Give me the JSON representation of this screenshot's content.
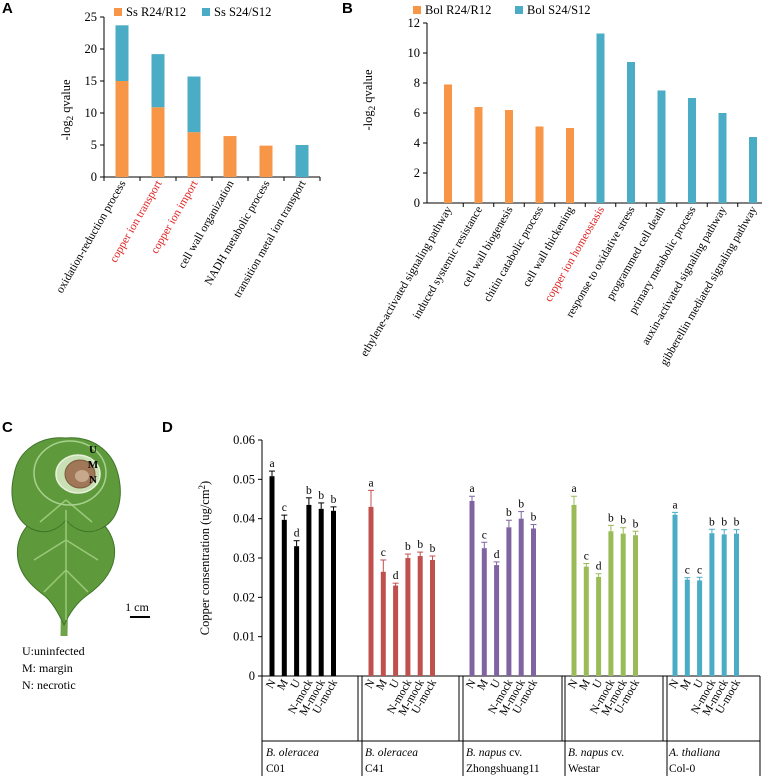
{
  "colors": {
    "orange": "#F79646",
    "teal": "#4BACC6",
    "red_label": "#E02020",
    "leaf": "#5E9A3C",
    "leaf_dark": "#3F7426",
    "necrotic": "#A07858"
  },
  "panel_letters": [
    "A",
    "B",
    "C",
    "D"
  ],
  "chart_data": [
    {
      "id": "A",
      "type": "bar",
      "stacked": true,
      "ylabel": "-log2 qvalue",
      "ylabel_main": "-log",
      "ylabel_sub": "2",
      "ylabel_end": " qvalue",
      "ylim": [
        0,
        25
      ],
      "yticks": [
        0,
        5,
        10,
        15,
        20,
        25
      ],
      "legend_labels": [
        "Ss R24/R12",
        "Ss S24/S12"
      ],
      "categories": [
        "oxidation-reduction process",
        "copper ion transport",
        "copper ion import",
        "cell wall organization",
        "NADH metabolic process",
        "transition metal ion transport"
      ],
      "red_categories": [
        1,
        2
      ],
      "series": [
        {
          "name": "Ss R24/R12",
          "color": "#F79646",
          "values": [
            15,
            10.9,
            7,
            6.4,
            4.9,
            0
          ]
        },
        {
          "name": "Ss S24/S12",
          "color": "#4BACC6",
          "values": [
            8.7,
            8.3,
            8.7,
            0,
            0,
            5
          ]
        }
      ]
    },
    {
      "id": "B",
      "type": "bar",
      "ylabel": "-log2 qvalue",
      "ylabel_main": "-log",
      "ylabel_sub": "2",
      "ylabel_end": " qvalue",
      "ylim": [
        0,
        12
      ],
      "yticks": [
        0,
        2,
        4,
        6,
        8,
        10,
        12
      ],
      "legend_labels": [
        "Bol R24/R12",
        "Bol S24/S12"
      ],
      "categories": [
        "ethylene-activated signaling pathway",
        "induced systemic resistance",
        "cell wall biogenesis",
        "chitin catabolic process",
        "cell wall thickening",
        "copper ion homeostasis",
        "response to oxidative stress",
        "programmed cell death",
        "primary metabolic process",
        "auxin-activated signaling pathway",
        "gibberellin mediated signaling pathway"
      ],
      "red_categories": [
        5
      ],
      "values": [
        7.9,
        6.4,
        6.2,
        5.1,
        5.0,
        11.3,
        9.4,
        7.5,
        7.0,
        6.0,
        4.4
      ],
      "colors_by_bar": [
        "#F79646",
        "#F79646",
        "#F79646",
        "#F79646",
        "#F79646",
        "#4BACC6",
        "#4BACC6",
        "#4BACC6",
        "#4BACC6",
        "#4BACC6",
        "#4BACC6"
      ]
    },
    {
      "id": "D",
      "type": "bar",
      "ylabel": "Copper consentration (ug/cm2)",
      "ylabel_main": "Copper consentration (ug/cm",
      "ylabel_sup": "2",
      "ylabel_end": ")",
      "ylim": [
        0,
        0.06
      ],
      "yticks": [
        "0",
        "0.01",
        "0.02",
        "0.03",
        "0.04",
        "0.05",
        "0.06"
      ],
      "categories": [
        "N",
        "M",
        "U",
        "N-mock",
        "M-mock",
        "U-mock"
      ],
      "groups": [
        {
          "species": "B. oleracea",
          "suffix": "",
          "cultivar": "C01",
          "color": "#000000",
          "values": [
            0.0508,
            0.0397,
            0.033,
            0.0435,
            0.0425,
            0.042
          ],
          "errors": [
            0.0013,
            0.0012,
            0.0014,
            0.0018,
            0.0015,
            0.001
          ],
          "letters": [
            "a",
            "c",
            "d",
            "b",
            "b",
            "b"
          ]
        },
        {
          "species": "B. oleracea",
          "suffix": "",
          "cultivar": "C41",
          "color": "#C0504D",
          "values": [
            0.043,
            0.0265,
            0.023,
            0.03,
            0.0305,
            0.0295
          ],
          "errors": [
            0.0042,
            0.003,
            0.0006,
            0.001,
            0.001,
            0.001
          ],
          "letters": [
            "a",
            "c",
            "d",
            "b",
            "b",
            "b"
          ]
        },
        {
          "species": "B. napus",
          "suffix": " cv.",
          "cultivar": "Zhongshuang11",
          "color": "#8064A2",
          "values": [
            0.0445,
            0.0325,
            0.0282,
            0.0378,
            0.04,
            0.0375
          ],
          "errors": [
            0.0012,
            0.0015,
            0.0008,
            0.0018,
            0.0018,
            0.001
          ],
          "letters": [
            "a",
            "c",
            "d",
            "b",
            "b",
            "b"
          ]
        },
        {
          "species": "B. napus",
          "suffix": " cv.",
          "cultivar": "Westar",
          "color": "#9BBB59",
          "values": [
            0.0435,
            0.0278,
            0.0252,
            0.0368,
            0.0362,
            0.0358
          ],
          "errors": [
            0.0022,
            0.0008,
            0.0008,
            0.0015,
            0.0015,
            0.001
          ],
          "letters": [
            "a",
            "c",
            "d",
            "b",
            "b",
            "b"
          ]
        },
        {
          "species": "A. thaliana",
          "suffix": "",
          "cultivar": "Col-0",
          "color": "#4BACC6",
          "values": [
            0.041,
            0.0245,
            0.0243,
            0.0363,
            0.036,
            0.0362
          ],
          "errors": [
            0.0006,
            0.0005,
            0.0008,
            0.001,
            0.0012,
            0.001
          ],
          "letters": [
            "a",
            "c",
            "c",
            "b",
            "b",
            "b"
          ]
        }
      ]
    }
  ],
  "panel_c": {
    "markers": [
      "U",
      "M",
      "N"
    ],
    "scale_label": "1 cm",
    "legend_lines": [
      "U:uninfected",
      "M: margin",
      "N: necrotic"
    ]
  }
}
